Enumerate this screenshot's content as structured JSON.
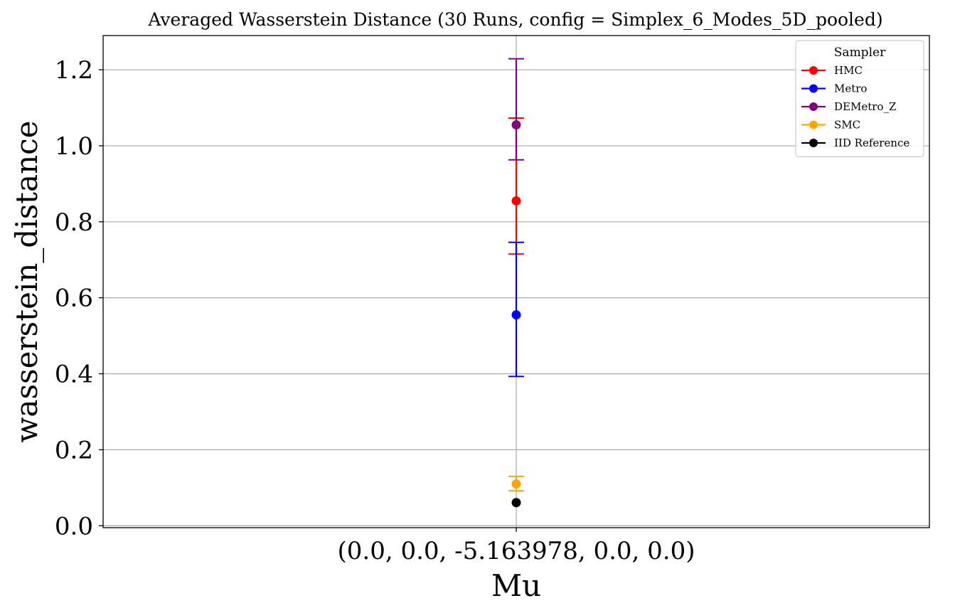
{
  "chart_data": {
    "type": "scatter",
    "title": "Averaged Wasserstein Distance (30 Runs, config = Simplex_6_Modes_5D_pooled)",
    "xlabel": "Mu",
    "ylabel": "wasserstein_distance",
    "categories": [
      "(0.0, 0.0, -5.163978, 0.0, 0.0)"
    ],
    "ylim": [
      -0.005,
      1.29
    ],
    "yticks": [
      0.0,
      0.2,
      0.4,
      0.6,
      0.8,
      1.0,
      1.2
    ],
    "ytick_labels": [
      "0.0",
      "0.2",
      "0.4",
      "0.6",
      "0.8",
      "1.0",
      "1.2"
    ],
    "grid": true,
    "legend": {
      "title": "Sampler",
      "placement": "top-right"
    },
    "series": [
      {
        "name": "HMC",
        "color": "#ff0000",
        "values": [
          0.855
        ],
        "err_low": [
          0.715
        ],
        "err_high": [
          1.073
        ]
      },
      {
        "name": "Metro",
        "color": "#0000ff",
        "values": [
          0.555
        ],
        "err_low": [
          0.393
        ],
        "err_high": [
          0.746
        ]
      },
      {
        "name": "DEMetro_Z",
        "color": "#800080",
        "values": [
          1.055
        ],
        "err_low": [
          0.963
        ],
        "err_high": [
          1.229
        ]
      },
      {
        "name": "SMC",
        "color": "#ffa500",
        "values": [
          0.11
        ],
        "err_low": [
          0.092
        ],
        "err_high": [
          0.13
        ]
      },
      {
        "name": "IID Reference",
        "color": "#000000",
        "values": [
          0.061
        ]
      }
    ]
  }
}
